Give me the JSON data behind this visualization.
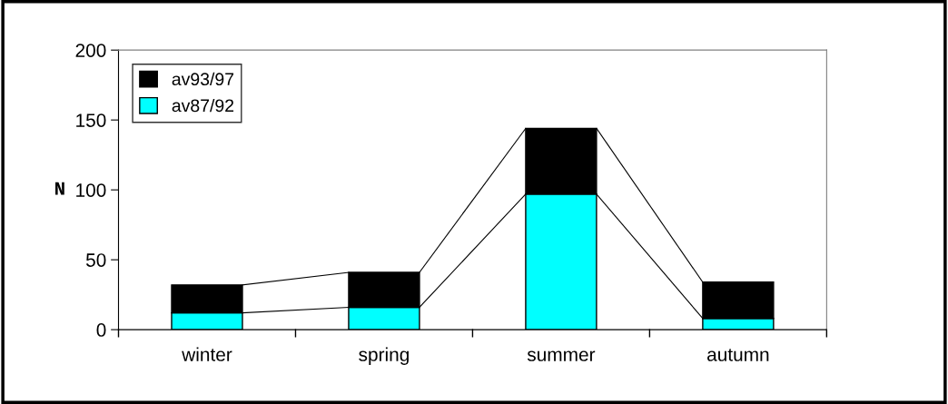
{
  "chart_data": {
    "type": "bar",
    "stacked": true,
    "ylabel": "N",
    "categories": [
      "winter",
      "spring",
      "summer",
      "autumn"
    ],
    "series": [
      {
        "name": "av87/92",
        "color": "#00ffff",
        "values": [
          12,
          16,
          97,
          8
        ]
      },
      {
        "name": "av93/97",
        "color": "#000000",
        "values": [
          20,
          25,
          47,
          26
        ]
      }
    ],
    "ylim": [
      0,
      200
    ],
    "yticks": [
      0,
      50,
      100,
      150,
      200
    ],
    "grid": false,
    "legend": "top left"
  }
}
